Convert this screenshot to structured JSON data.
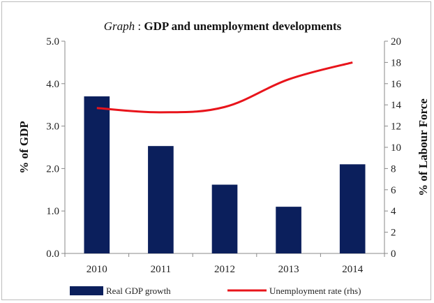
{
  "chart_data": {
    "type": "bar+line",
    "title_prefix": "Graph",
    "title_main": "GDP and unemployment developments",
    "categories": [
      "2010",
      "2011",
      "2012",
      "2013",
      "2014"
    ],
    "series": [
      {
        "name": "Real GDP growth",
        "type": "bar",
        "axis": "left",
        "color": "#0b1f5c",
        "values": [
          3.7,
          2.53,
          1.62,
          1.1,
          2.1
        ]
      },
      {
        "name": "Unemployment rate (rhs)",
        "type": "line",
        "axis": "right",
        "color": "#e8141b",
        "values": [
          13.7,
          13.3,
          13.8,
          16.4,
          18.0
        ]
      }
    ],
    "ylabel_left": "% of GDP",
    "ylabel_right": "% of Labour Force",
    "ylim_left": [
      0,
      5
    ],
    "ylim_right": [
      0,
      20
    ],
    "yticks_left": [
      "0.0",
      "1.0",
      "2.0",
      "3.0",
      "4.0",
      "5.0"
    ],
    "yticks_right": [
      "0",
      "2",
      "4",
      "6",
      "8",
      "10",
      "12",
      "14",
      "16",
      "18",
      "20"
    ],
    "grid": false,
    "legend_position": "bottom"
  }
}
